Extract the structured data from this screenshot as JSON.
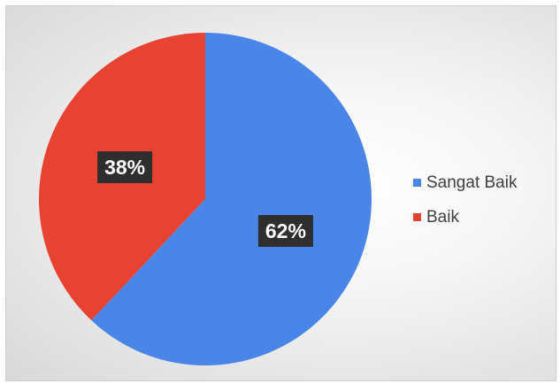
{
  "chart_data": {
    "type": "pie",
    "title": "",
    "categories": [
      "Sangat Baik",
      "Baik"
    ],
    "values": [
      62,
      38
    ],
    "data_labels": [
      "62%",
      "38%"
    ],
    "colors": [
      "#4a86e8",
      "#e84332"
    ],
    "legend_position": "right",
    "start_angle_deg": 0,
    "direction": "clockwise"
  }
}
